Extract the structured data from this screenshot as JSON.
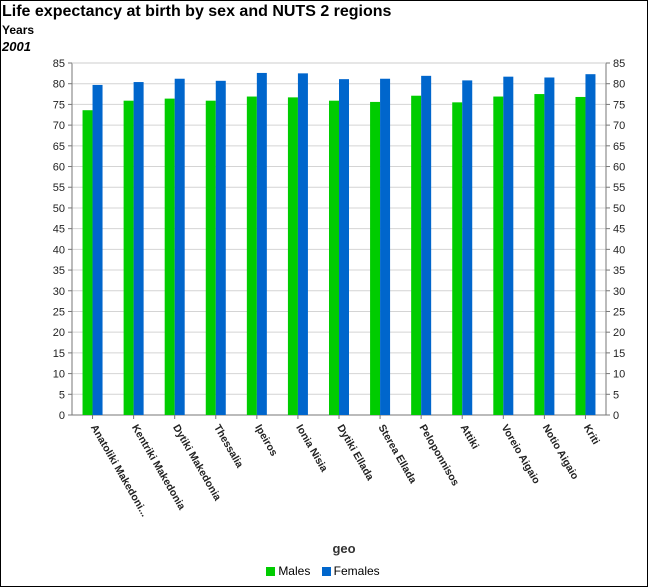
{
  "title": "Life expectancy at birth by sex and NUTS 2 regions",
  "subtitle": "Years",
  "period": "2001",
  "chart_data": {
    "type": "bar",
    "title": "Life expectancy at birth by sex and NUTS 2 regions",
    "subtitle": "Years",
    "period": "2001",
    "xlabel": "geo",
    "ylabel": "",
    "ylim": [
      0,
      85
    ],
    "y_ticks": [
      0,
      5,
      10,
      15,
      20,
      25,
      30,
      35,
      40,
      45,
      50,
      55,
      60,
      65,
      70,
      75,
      80,
      85
    ],
    "grid": true,
    "legend_position": "bottom",
    "categories": [
      "Anatoliki Makedoni...",
      "Kentriki Makedonia",
      "Dytiki Makedonia",
      "Thessalia",
      "Ipeiros",
      "Ionia Nisia",
      "Dytiki Ellada",
      "Sterea Ellada",
      "Peloponnisos",
      "Attiki",
      "Voreio Aigaio",
      "Notio Aigaio",
      "Kriti"
    ],
    "series": [
      {
        "name": "Males",
        "color": "#00cc00",
        "values": [
          73.6,
          75.9,
          76.4,
          75.9,
          76.9,
          76.7,
          75.9,
          75.6,
          77.1,
          75.5,
          76.9,
          77.5,
          76.8
        ]
      },
      {
        "name": "Females",
        "color": "#0066cc",
        "values": [
          79.7,
          80.4,
          81.2,
          80.7,
          82.6,
          82.5,
          81.1,
          81.2,
          81.9,
          80.8,
          81.7,
          81.5,
          82.3
        ]
      }
    ]
  }
}
